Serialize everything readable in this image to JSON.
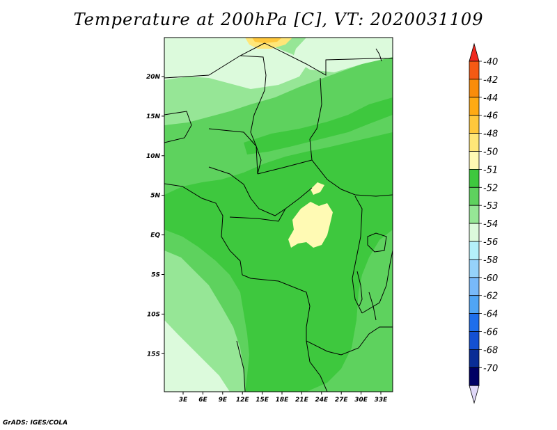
{
  "title": "Temperature at 200hPa [C], VT: 2020031109",
  "credit": "GrADS: IGES/COLA",
  "map": {
    "variable": "Temperature",
    "level": "200hPa",
    "units": "C",
    "valid_time": "2020031109",
    "lat_labels": [
      "20N",
      "15N",
      "10N",
      "5N",
      "EQ",
      "5S",
      "10S",
      "15S"
    ],
    "lon_labels": [
      "3E",
      "6E",
      "9E",
      "12E",
      "15E",
      "18E",
      "21E",
      "24E",
      "27E",
      "30E",
      "33E"
    ]
  },
  "colorbar": {
    "levels": [
      "-40",
      "-42",
      "-44",
      "-46",
      "-48",
      "-50",
      "-51",
      "-52",
      "-53",
      "-54",
      "-56",
      "-58",
      "-60",
      "-62",
      "-64",
      "-66",
      "-68",
      "-70"
    ],
    "colors": [
      "#f0281e",
      "#f55a14",
      "#fa8c0a",
      "#ffaa14",
      "#ffc83c",
      "#ffe678",
      "#fffab4",
      "#3ec83e",
      "#5ed25e",
      "#96e696",
      "#dcfadc",
      "#b4f0fa",
      "#96d2fa",
      "#78b9fa",
      "#50a5f5",
      "#1e6eeb",
      "#1450d2",
      "#0a2d96",
      "#000064",
      "#e0d8f8"
    ]
  }
}
